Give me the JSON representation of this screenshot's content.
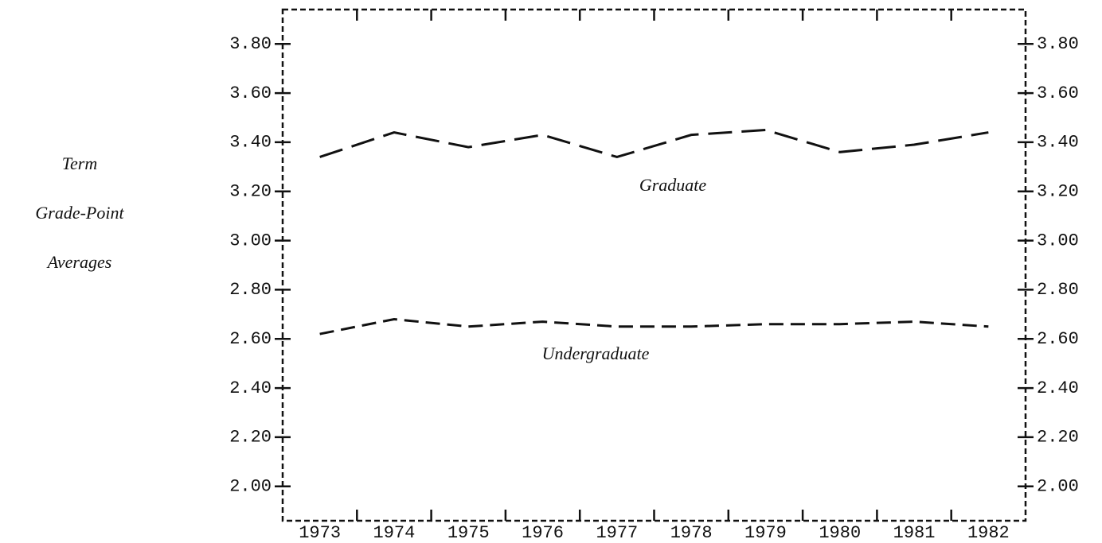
{
  "chart_data": {
    "type": "line",
    "ylabel": [
      "Term",
      "Grade-Point",
      "Averages"
    ],
    "categories": [
      "1973",
      "1974",
      "1975",
      "1976",
      "1977",
      "1978",
      "1979",
      "1980",
      "1981",
      "1982"
    ],
    "series": [
      {
        "name": "Graduate",
        "color": "#111111",
        "values": [
          3.34,
          3.44,
          3.38,
          3.43,
          3.34,
          3.43,
          3.45,
          3.36,
          3.39,
          3.44
        ]
      },
      {
        "name": "Undergraduate",
        "color": "#111111",
        "values": [
          2.62,
          2.68,
          2.65,
          2.67,
          2.65,
          2.65,
          2.66,
          2.66,
          2.67,
          2.65
        ]
      }
    ],
    "ylim": [
      1.86,
      3.94
    ],
    "yticks": [
      {
        "value": 2.0,
        "label": "2.00"
      },
      {
        "value": 2.2,
        "label": "2.20"
      },
      {
        "value": 2.4,
        "label": "2.40"
      },
      {
        "value": 2.6,
        "label": "2.60"
      },
      {
        "value": 2.8,
        "label": "2.80"
      },
      {
        "value": 3.0,
        "label": "3.00"
      },
      {
        "value": 3.2,
        "label": "3.20"
      },
      {
        "value": 3.4,
        "label": "3.40"
      },
      {
        "value": 3.6,
        "label": "3.60"
      },
      {
        "value": 3.8,
        "label": "3.80"
      }
    ],
    "grid": false
  }
}
